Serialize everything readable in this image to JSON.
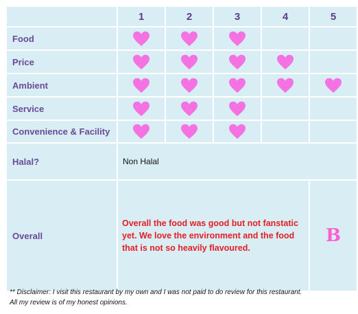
{
  "header": {
    "columns": [
      "",
      "1",
      "2",
      "3",
      "4",
      "5"
    ]
  },
  "ratings": [
    {
      "label": "Food",
      "hearts": 3
    },
    {
      "label": "Price",
      "hearts": 4
    },
    {
      "label": "Ambient",
      "hearts": 5
    },
    {
      "label": "Service",
      "hearts": 3
    },
    {
      "label": "Convenience & Facility",
      "hearts": 3
    }
  ],
  "halal": {
    "label": "Halal?",
    "value": "Non Halal"
  },
  "overall": {
    "label": "Overall",
    "text": "Overall the food was good but not fanstatic yet. We love the environment and the food that is not so heavily flavoured.",
    "grade": "B"
  },
  "disclaimer": {
    "line1": "** Disclaimer: I visit this restaurant by my own and I was not paid to do review for this restaurant.",
    "line2": "All my review is of my honest opinions."
  },
  "colors": {
    "heart": "#f472e2",
    "cell_bg": "#d8eef4",
    "overall_text": "#e31e24",
    "grade": "#ff5fd0"
  },
  "icons": {
    "rating": "heart-icon"
  }
}
